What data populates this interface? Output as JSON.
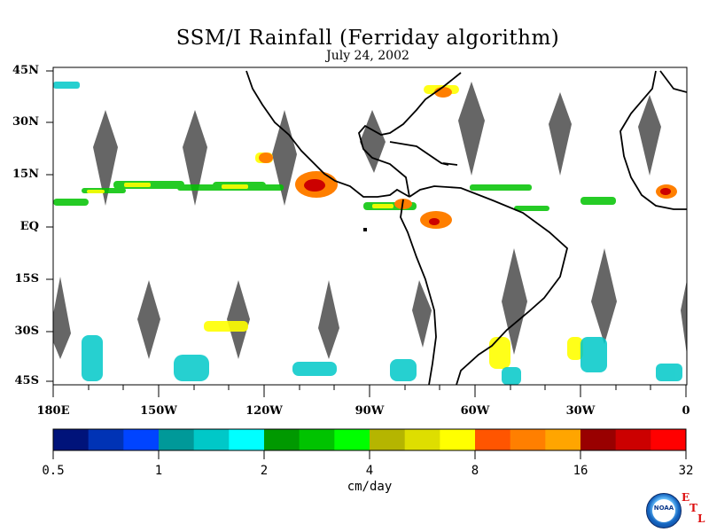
{
  "title": "SSM/I Rainfall (Ferriday algorithm)",
  "subtitle": "July 24, 2002",
  "y_axis_labels": [
    "45N",
    "30N",
    "15N",
    "EQ",
    "15S",
    "30S",
    "45S"
  ],
  "x_axis_labels": [
    "180E",
    "150W",
    "120W",
    "90W",
    "60W",
    "30W",
    "0"
  ],
  "colorbar": {
    "colors": [
      "#00137a",
      "#0033b5",
      "#0044ff",
      "#009999",
      "#00c8c8",
      "#00ffff",
      "#009900",
      "#00c300",
      "#00ff00",
      "#b5b500",
      "#dede00",
      "#ffff00",
      "#ff5500",
      "#ff7f00",
      "#ffa500",
      "#990000",
      "#cc0000",
      "#ff0000"
    ],
    "tick_labels": [
      "0.5",
      "1",
      "2",
      "4",
      "8",
      "16",
      "32"
    ],
    "units": "cm/day"
  },
  "logo": {
    "agency": "NOAA",
    "letters": [
      "E",
      "T",
      "L"
    ]
  }
}
